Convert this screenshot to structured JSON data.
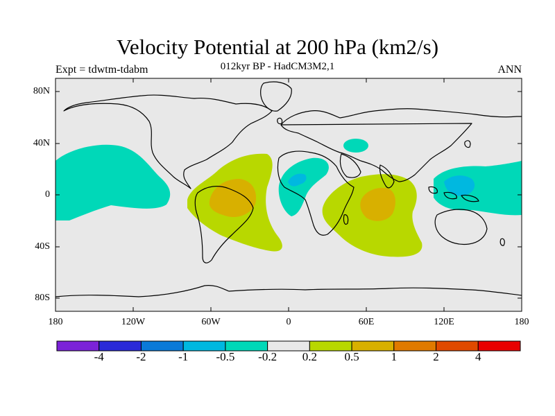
{
  "title": "Velocity Potential at 200 hPa (km2/s)",
  "subtitle": "012kyr BP - HadCM3M2,1",
  "left_label": "Expt = tdwtm-tdabm",
  "right_label": "ANN",
  "lat_ticks": [
    "80N",
    "40N",
    "0",
    "40S",
    "80S"
  ],
  "lon_ticks": [
    "180",
    "120W",
    "60W",
    "0",
    "60E",
    "120E",
    "180"
  ],
  "colorbar": {
    "labels": [
      "-4",
      "-2",
      "-1",
      "-0.5",
      "-0.2",
      "0.2",
      "0.5",
      "1",
      "2",
      "4"
    ],
    "colors": [
      "#7b22d8",
      "#2a2ad8",
      "#0a7ad8",
      "#00b8e0",
      "#00d8b8",
      "#e8e8e8",
      "#b8d800",
      "#d8b000",
      "#e07a00",
      "#e04a00",
      "#e80000"
    ]
  },
  "colors": {
    "land_background": "#e8e8e8",
    "coast": "#000000",
    "neg_light": "#00d8b8",
    "neg_mid": "#00b8e0",
    "pos_light": "#b8d800",
    "pos_mid": "#d8b000"
  }
}
